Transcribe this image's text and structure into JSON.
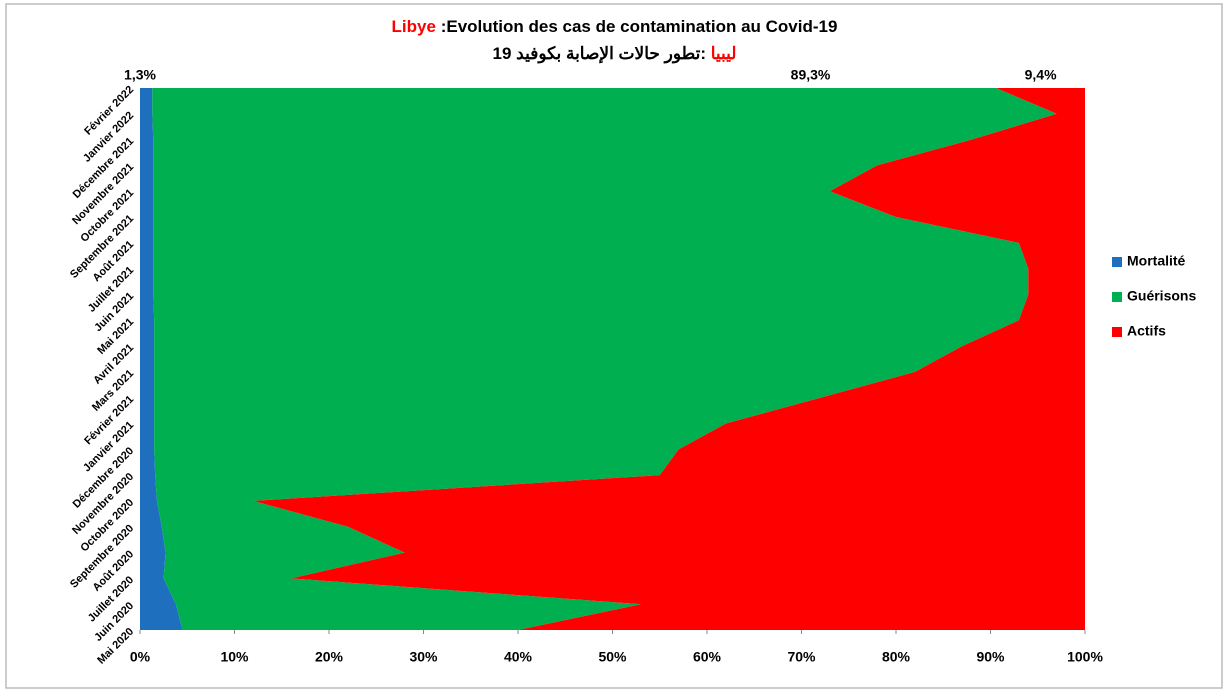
{
  "chart_data": {
    "type": "stacked_area_horizontal",
    "title_country": "Libye",
    "title": ":Evolution des cas de contamination  au Covid-19",
    "subtitle_country": "ليبيا",
    "subtitle": ":تطور حالات الإصابة بكوفيد 19",
    "categories": [
      "Mai 2020",
      "Juin 2020",
      "Juillet 2020",
      "Août 2020",
      "Septembre 2020",
      "Octobre 2020",
      "Novembre 2020",
      "Décembre 2020",
      "Janvier 2021",
      "Février 2021",
      "Mars 2021",
      "Avril 2021",
      "Mai 2021",
      "Juin 2021",
      "Juillet 2021",
      "Août 2021",
      "Septembre 2021",
      "Octobre 2021",
      "Novembre 2021",
      "Décembre 2021",
      "Janvier 2022",
      "Février 2022"
    ],
    "series": [
      {
        "name": "Mortalité",
        "color": "#1f6fbf",
        "values": [
          4.5,
          3.8,
          2.5,
          2.7,
          2.3,
          1.8,
          1.6,
          1.5,
          1.5,
          1.5,
          1.5,
          1.5,
          1.5,
          1.4,
          1.4,
          1.4,
          1.4,
          1.4,
          1.4,
          1.4,
          1.3,
          1.3
        ],
        "value_labels": [
          null,
          null,
          null,
          null,
          null,
          null,
          null,
          null,
          null,
          null,
          null,
          null,
          null,
          null,
          null,
          null,
          null,
          null,
          null,
          null,
          null,
          "1,3%"
        ]
      },
      {
        "name": "Guérisons",
        "color": "#00b050",
        "values": [
          35.5,
          49.2,
          13.5,
          25.3,
          19.7,
          10.2,
          53.4,
          55.5,
          60.5,
          70.5,
          80.5,
          85.5,
          91.5,
          92.6,
          92.6,
          91.6,
          78.6,
          71.6,
          76.6,
          86.6,
          95.7,
          89.3
        ],
        "value_labels": [
          null,
          null,
          null,
          null,
          null,
          null,
          null,
          null,
          null,
          null,
          null,
          null,
          null,
          null,
          null,
          null,
          null,
          null,
          null,
          null,
          null,
          "89,3%"
        ]
      },
      {
        "name": "Actifs",
        "color": "#ff0000",
        "values": [
          60,
          47,
          84,
          72,
          78,
          88,
          45,
          43,
          38,
          28,
          18,
          13,
          7,
          6,
          6,
          7,
          20,
          27,
          22,
          12,
          3,
          9.4
        ],
        "value_labels": [
          null,
          null,
          null,
          null,
          null,
          null,
          null,
          null,
          null,
          null,
          null,
          null,
          null,
          null,
          null,
          null,
          null,
          null,
          null,
          null,
          null,
          "9,4%"
        ]
      }
    ],
    "xlim": [
      0,
      100
    ],
    "xticks": [
      {
        "value": 0,
        "label": "0%"
      },
      {
        "value": 10,
        "label": "10%"
      },
      {
        "value": 20,
        "label": "20%"
      },
      {
        "value": 30,
        "label": "30%"
      },
      {
        "value": 40,
        "label": "40%"
      },
      {
        "value": 50,
        "label": "50%"
      },
      {
        "value": 60,
        "label": "60%"
      },
      {
        "value": 70,
        "label": "70%"
      },
      {
        "value": 80,
        "label": "80%"
      },
      {
        "value": 90,
        "label": "90%"
      },
      {
        "value": 100,
        "label": "100%"
      }
    ],
    "legend": "right"
  }
}
